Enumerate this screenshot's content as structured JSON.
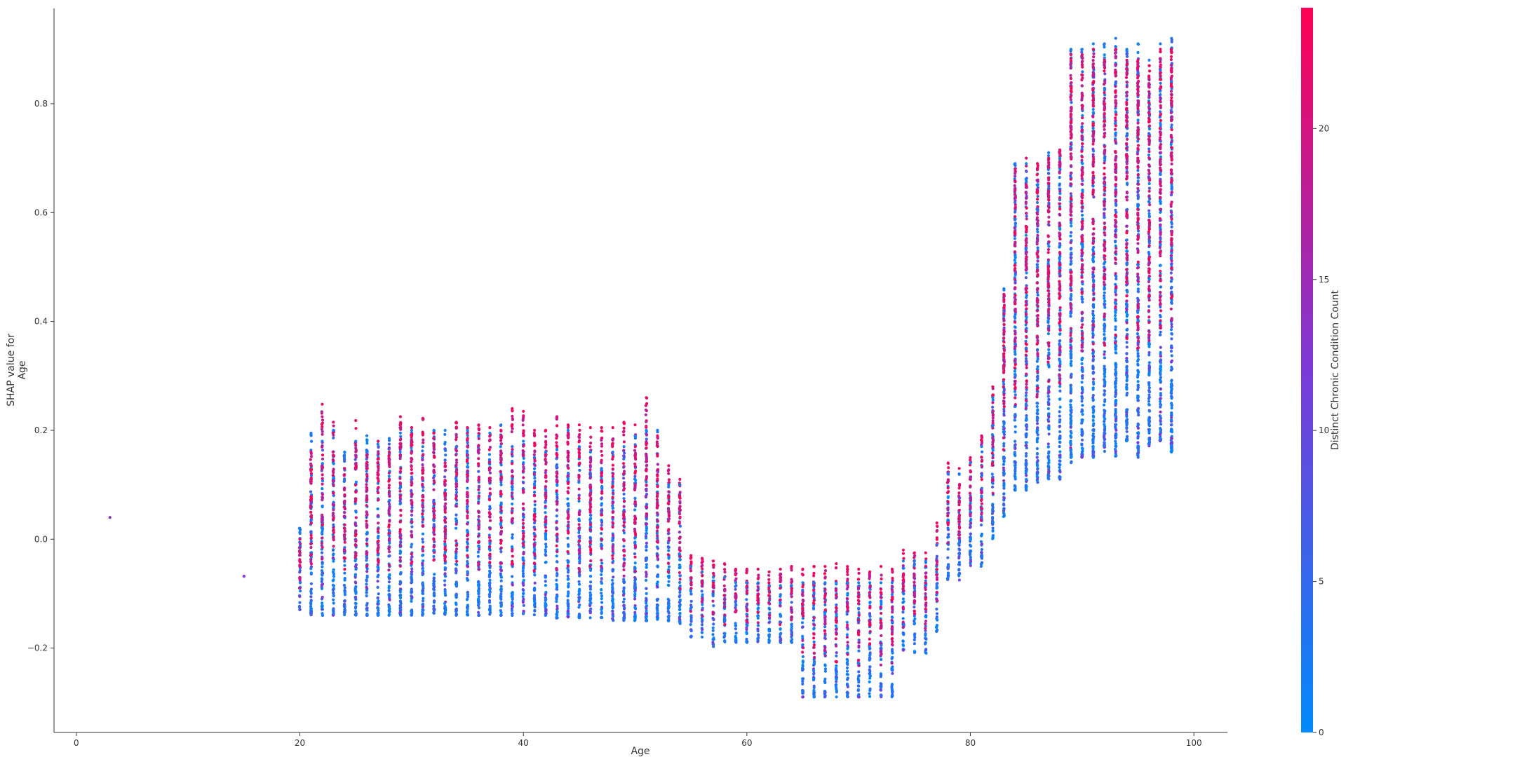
{
  "chart_data": {
    "type": "scatter",
    "title": "",
    "xlabel": "Age",
    "ylabel_lines": [
      "SHAP value for",
      "Age"
    ],
    "xlim": [
      -2,
      103
    ],
    "ylim": [
      -0.355,
      0.975
    ],
    "x_ticks": [
      0,
      20,
      40,
      60,
      80,
      100
    ],
    "x_tick_labels": [
      "0",
      "20",
      "40",
      "60",
      "80",
      "100"
    ],
    "y_ticks": [
      -0.2,
      0.0,
      0.2,
      0.4,
      0.6,
      0.8
    ],
    "y_tick_labels": [
      "−0.2",
      "0.0",
      "0.2",
      "0.4",
      "0.6",
      "0.8"
    ],
    "grid": false,
    "colorbar": {
      "label": "Distinct Chronic Condition Count",
      "range": [
        0,
        24
      ],
      "ticks": [
        0,
        5,
        10,
        15,
        20
      ],
      "tick_labels": [
        "0",
        "5",
        "10",
        "15",
        "20"
      ],
      "colors": [
        "#008afb",
        "#7b3ad8",
        "#ff0052"
      ]
    },
    "outliers": [
      {
        "x": 3,
        "y": 0.04,
        "color_value": 14
      },
      {
        "x": 15,
        "y": -0.068,
        "color_value": 13
      }
    ],
    "age_columns": [
      {
        "age": 20,
        "low": -0.13,
        "high": 0.02,
        "red_high": 0.0
      },
      {
        "age": 21,
        "low": -0.14,
        "high": 0.195,
        "red_high": 0.16
      },
      {
        "age": 22,
        "low": -0.14,
        "high": 0.18,
        "red_high": 0.248
      },
      {
        "age": 23,
        "low": -0.14,
        "high": 0.2,
        "red_high": 0.215
      },
      {
        "age": 24,
        "low": -0.14,
        "high": 0.16,
        "red_high": 0.13
      },
      {
        "age": 25,
        "low": -0.14,
        "high": 0.18,
        "red_high": 0.218
      },
      {
        "age": 26,
        "low": -0.14,
        "high": 0.19,
        "red_high": 0.155
      },
      {
        "age": 27,
        "low": -0.14,
        "high": 0.18,
        "red_high": 0.18
      },
      {
        "age": 28,
        "low": -0.14,
        "high": 0.185,
        "red_high": 0.16
      },
      {
        "age": 29,
        "low": -0.14,
        "high": 0.195,
        "red_high": 0.225
      },
      {
        "age": 30,
        "low": -0.14,
        "high": 0.2,
        "red_high": 0.205
      },
      {
        "age": 31,
        "low": -0.14,
        "high": 0.17,
        "red_high": 0.222
      },
      {
        "age": 32,
        "low": -0.14,
        "high": 0.2,
        "red_high": 0.195
      },
      {
        "age": 33,
        "low": -0.14,
        "high": 0.2,
        "red_high": 0.14
      },
      {
        "age": 34,
        "low": -0.14,
        "high": 0.17,
        "red_high": 0.215
      },
      {
        "age": 35,
        "low": -0.14,
        "high": 0.2,
        "red_high": 0.205
      },
      {
        "age": 36,
        "low": -0.14,
        "high": 0.19,
        "red_high": 0.21
      },
      {
        "age": 37,
        "low": -0.14,
        "high": 0.195,
        "red_high": 0.205
      },
      {
        "age": 38,
        "low": -0.14,
        "high": 0.21,
        "red_high": 0.2
      },
      {
        "age": 39,
        "low": -0.14,
        "high": 0.17,
        "red_high": 0.24
      },
      {
        "age": 40,
        "low": -0.14,
        "high": 0.18,
        "red_high": 0.235
      },
      {
        "age": 41,
        "low": -0.14,
        "high": 0.15,
        "red_high": 0.2
      },
      {
        "age": 42,
        "low": -0.14,
        "high": 0.16,
        "red_high": 0.2
      },
      {
        "age": 43,
        "low": -0.145,
        "high": 0.165,
        "red_high": 0.225
      },
      {
        "age": 44,
        "low": -0.145,
        "high": 0.2,
        "red_high": 0.21
      },
      {
        "age": 45,
        "low": -0.145,
        "high": 0.17,
        "red_high": 0.21
      },
      {
        "age": 46,
        "low": -0.145,
        "high": 0.16,
        "red_high": 0.205
      },
      {
        "age": 47,
        "low": -0.145,
        "high": 0.13,
        "red_high": 0.205
      },
      {
        "age": 48,
        "low": -0.15,
        "high": 0.16,
        "red_high": 0.205
      },
      {
        "age": 49,
        "low": -0.15,
        "high": 0.17,
        "red_high": 0.215
      },
      {
        "age": 50,
        "low": -0.15,
        "high": 0.19,
        "red_high": 0.21
      },
      {
        "age": 51,
        "low": -0.15,
        "high": 0.2,
        "red_high": 0.26
      },
      {
        "age": 52,
        "low": -0.15,
        "high": 0.2,
        "red_high": 0.19
      },
      {
        "age": 53,
        "low": -0.15,
        "high": 0.1,
        "red_high": 0.135
      },
      {
        "age": 54,
        "low": -0.155,
        "high": 0.1,
        "red_high": 0.11
      },
      {
        "age": 55,
        "low": -0.18,
        "high": -0.05,
        "red_high": -0.03
      },
      {
        "age": 56,
        "low": -0.18,
        "high": -0.06,
        "red_high": -0.035
      },
      {
        "age": 57,
        "low": -0.2,
        "high": -0.07,
        "red_high": -0.04
      },
      {
        "age": 58,
        "low": -0.19,
        "high": -0.07,
        "red_high": -0.045
      },
      {
        "age": 59,
        "low": -0.19,
        "high": -0.08,
        "red_high": -0.055
      },
      {
        "age": 60,
        "low": -0.19,
        "high": -0.08,
        "red_high": -0.055
      },
      {
        "age": 61,
        "low": -0.19,
        "high": -0.08,
        "red_high": -0.055
      },
      {
        "age": 62,
        "low": -0.19,
        "high": -0.085,
        "red_high": -0.06
      },
      {
        "age": 63,
        "low": -0.19,
        "high": -0.085,
        "red_high": -0.055
      },
      {
        "age": 64,
        "low": -0.19,
        "high": -0.085,
        "red_high": -0.05
      },
      {
        "age": 65,
        "low": -0.29,
        "high": -0.08,
        "red_high": -0.055
      },
      {
        "age": 66,
        "low": -0.29,
        "high": -0.08,
        "red_high": -0.05
      },
      {
        "age": 67,
        "low": -0.29,
        "high": -0.08,
        "red_high": -0.05
      },
      {
        "age": 68,
        "low": -0.29,
        "high": -0.08,
        "red_high": -0.045
      },
      {
        "age": 69,
        "low": -0.29,
        "high": -0.08,
        "red_high": -0.05
      },
      {
        "age": 70,
        "low": -0.29,
        "high": -0.08,
        "red_high": -0.055
      },
      {
        "age": 71,
        "low": -0.29,
        "high": -0.08,
        "red_high": -0.06
      },
      {
        "age": 72,
        "low": -0.29,
        "high": -0.08,
        "red_high": -0.05
      },
      {
        "age": 73,
        "low": -0.29,
        "high": -0.08,
        "red_high": -0.055
      },
      {
        "age": 74,
        "low": -0.21,
        "high": -0.04,
        "red_high": -0.02
      },
      {
        "age": 75,
        "low": -0.21,
        "high": -0.04,
        "red_high": -0.025
      },
      {
        "age": 76,
        "low": -0.21,
        "high": -0.04,
        "red_high": -0.025
      },
      {
        "age": 77,
        "low": -0.17,
        "high": -0.01,
        "red_high": 0.03
      },
      {
        "age": 78,
        "low": -0.075,
        "high": 0.12,
        "red_high": 0.14
      },
      {
        "age": 79,
        "low": -0.075,
        "high": 0.12,
        "red_high": 0.13
      },
      {
        "age": 80,
        "low": -0.05,
        "high": 0.14,
        "red_high": 0.15
      },
      {
        "age": 81,
        "low": -0.05,
        "high": 0.17,
        "red_high": 0.19
      },
      {
        "age": 82,
        "low": 0.0,
        "high": 0.26,
        "red_high": 0.28
      },
      {
        "age": 83,
        "low": 0.04,
        "high": 0.46,
        "red_high": 0.45
      },
      {
        "age": 84,
        "low": 0.09,
        "high": 0.69,
        "red_high": 0.68
      },
      {
        "age": 85,
        "low": 0.09,
        "high": 0.69,
        "red_high": 0.7
      },
      {
        "age": 86,
        "low": 0.1,
        "high": 0.69,
        "red_high": 0.69
      },
      {
        "age": 87,
        "low": 0.11,
        "high": 0.71,
        "red_high": 0.7
      },
      {
        "age": 88,
        "low": 0.11,
        "high": 0.7,
        "red_high": 0.715
      },
      {
        "age": 89,
        "low": 0.14,
        "high": 0.9,
        "red_high": 0.89
      },
      {
        "age": 90,
        "low": 0.15,
        "high": 0.9,
        "red_high": 0.89
      },
      {
        "age": 91,
        "low": 0.15,
        "high": 0.91,
        "red_high": 0.9
      },
      {
        "age": 92,
        "low": 0.16,
        "high": 0.91,
        "red_high": 0.88
      },
      {
        "age": 93,
        "low": 0.15,
        "high": 0.92,
        "red_high": 0.9
      },
      {
        "age": 94,
        "low": 0.18,
        "high": 0.9,
        "red_high": 0.88
      },
      {
        "age": 95,
        "low": 0.15,
        "high": 0.91,
        "red_high": 0.88
      },
      {
        "age": 96,
        "low": 0.17,
        "high": 0.88,
        "red_high": 0.87
      },
      {
        "age": 97,
        "low": 0.18,
        "high": 0.91,
        "red_high": 0.9
      },
      {
        "age": 98,
        "low": 0.16,
        "high": 0.92,
        "red_high": 0.9
      }
    ]
  }
}
